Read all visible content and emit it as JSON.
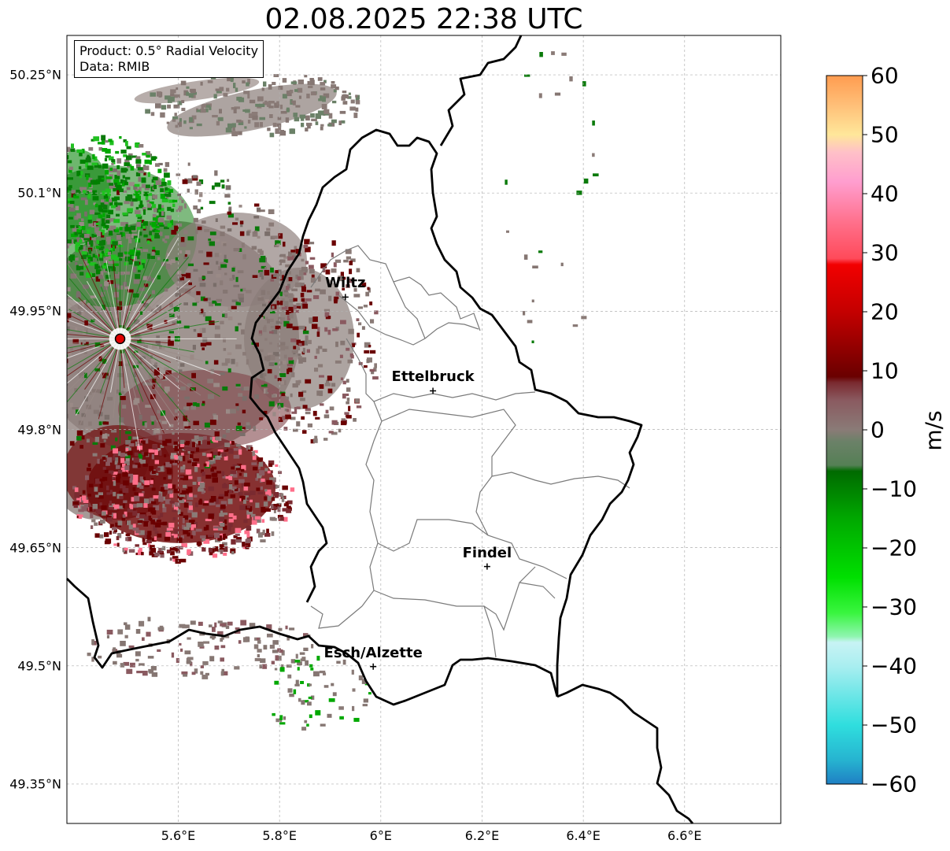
{
  "title": "02.08.2025 22:38 UTC",
  "info_box": {
    "line1": "Product: 0.5° Radial Velocity",
    "line2": "Data: RMIB"
  },
  "map": {
    "lon_range": [
      5.38,
      6.79
    ],
    "lat_range": [
      49.3,
      50.3
    ],
    "lon_ticks": [
      {
        "value": 5.6,
        "label": "5.6°E"
      },
      {
        "value": 5.8,
        "label": "5.8°E"
      },
      {
        "value": 6.0,
        "label": "6°E"
      },
      {
        "value": 6.2,
        "label": "6.2°E"
      },
      {
        "value": 6.4,
        "label": "6.4°E"
      },
      {
        "value": 6.6,
        "label": "6.6°E"
      }
    ],
    "lat_ticks": [
      {
        "value": 49.35,
        "label": "49.35°N"
      },
      {
        "value": 49.5,
        "label": "49.5°N"
      },
      {
        "value": 49.65,
        "label": "49.65°N"
      },
      {
        "value": 49.8,
        "label": "49.8°N"
      },
      {
        "value": 49.95,
        "label": "49.95°N"
      },
      {
        "value": 50.1,
        "label": "50.1°N"
      },
      {
        "value": 50.25,
        "label": "50.25°N"
      }
    ],
    "grid": true,
    "radar_site": {
      "lon": 5.485,
      "lat": 49.915,
      "color": "#e00000"
    },
    "cities": [
      {
        "name": "Wiltz",
        "lon": 5.93,
        "lat": 49.968
      },
      {
        "name": "Ettelbruck",
        "lon": 6.103,
        "lat": 49.849
      },
      {
        "name": "Findel",
        "lon": 6.21,
        "lat": 49.626
      },
      {
        "name": "Esch/Alzette",
        "lon": 5.985,
        "lat": 49.499
      }
    ]
  },
  "colorbar": {
    "min": -60,
    "max": 60,
    "unit": "m/s",
    "ticks": [
      {
        "value": 60,
        "label": "60"
      },
      {
        "value": 50,
        "label": "50"
      },
      {
        "value": 40,
        "label": "40"
      },
      {
        "value": 30,
        "label": "30"
      },
      {
        "value": 20,
        "label": "20"
      },
      {
        "value": 10,
        "label": "10"
      },
      {
        "value": 0,
        "label": "0"
      },
      {
        "value": -10,
        "label": "−10"
      },
      {
        "value": -20,
        "label": "−20"
      },
      {
        "value": -30,
        "label": "−30"
      },
      {
        "value": -40,
        "label": "−40"
      },
      {
        "value": -50,
        "label": "−50"
      },
      {
        "value": -60,
        "label": "−60"
      }
    ],
    "stops": [
      {
        "value": -60,
        "color": "#1f7fc4"
      },
      {
        "value": -56,
        "color": "#26b3d0"
      },
      {
        "value": -50,
        "color": "#2fdede"
      },
      {
        "value": -40,
        "color": "#a9eef0"
      },
      {
        "value": -36,
        "color": "#c8f3f4"
      },
      {
        "value": -35,
        "color": "#8ff5b0"
      },
      {
        "value": -31,
        "color": "#39f53f"
      },
      {
        "value": -25,
        "color": "#00e000"
      },
      {
        "value": -15,
        "color": "#00a800"
      },
      {
        "value": -7,
        "color": "#006a00"
      },
      {
        "value": -6,
        "color": "#558055"
      },
      {
        "value": -2,
        "color": "#6b8168"
      },
      {
        "value": 0,
        "color": "#8a7b77"
      },
      {
        "value": 5,
        "color": "#8a5a60"
      },
      {
        "value": 8,
        "color": "#7a2a30"
      },
      {
        "value": 9,
        "color": "#6a0000"
      },
      {
        "value": 20,
        "color": "#c40000"
      },
      {
        "value": 28,
        "color": "#f20000"
      },
      {
        "value": 29,
        "color": "#ff4a5a"
      },
      {
        "value": 35,
        "color": "#ff6f8a"
      },
      {
        "value": 42,
        "color": "#ff9ecf"
      },
      {
        "value": 47,
        "color": "#ffc0c8"
      },
      {
        "value": 50,
        "color": "#ffe79a"
      },
      {
        "value": 55,
        "color": "#ffbf78"
      },
      {
        "value": 60,
        "color": "#ff9c50"
      }
    ]
  }
}
